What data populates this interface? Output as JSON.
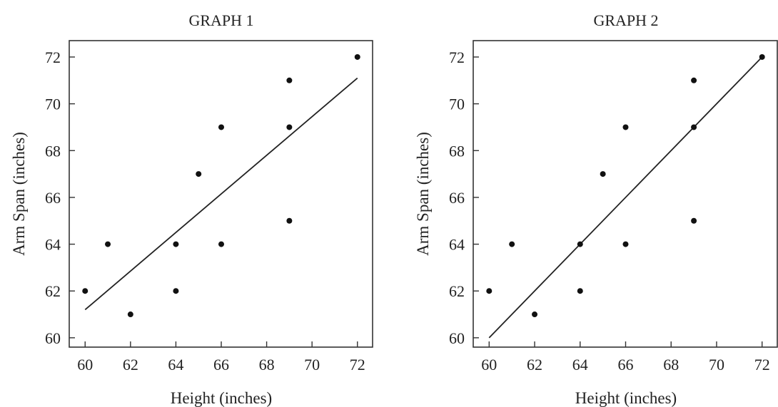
{
  "chart_data": [
    {
      "type": "scatter",
      "title": "GRAPH 1",
      "xlabel": "Height (inches)",
      "ylabel": "Arm Span (inches)",
      "xlim": [
        59.3,
        72.7
      ],
      "ylim": [
        59.6,
        72.7
      ],
      "xticks": [
        60,
        62,
        64,
        66,
        68,
        70,
        72
      ],
      "yticks": [
        60,
        62,
        64,
        66,
        68,
        70,
        72
      ],
      "grid": false,
      "points": [
        {
          "x": 60,
          "y": 62
        },
        {
          "x": 61,
          "y": 64
        },
        {
          "x": 62,
          "y": 61
        },
        {
          "x": 64,
          "y": 64
        },
        {
          "x": 64,
          "y": 62
        },
        {
          "x": 65,
          "y": 67
        },
        {
          "x": 66,
          "y": 69
        },
        {
          "x": 66,
          "y": 64
        },
        {
          "x": 69,
          "y": 71
        },
        {
          "x": 69,
          "y": 69
        },
        {
          "x": 69,
          "y": 65
        },
        {
          "x": 72,
          "y": 72
        }
      ],
      "line": {
        "x": [
          60,
          72
        ],
        "y": [
          61.2,
          71.1
        ]
      }
    },
    {
      "type": "scatter",
      "title": "GRAPH 2",
      "xlabel": "Height (inches)",
      "ylabel": "Arm Span (inches)",
      "xlim": [
        59.3,
        72.7
      ],
      "ylim": [
        59.6,
        72.7
      ],
      "xticks": [
        60,
        62,
        64,
        66,
        68,
        70,
        72
      ],
      "yticks": [
        60,
        62,
        64,
        66,
        68,
        70,
        72
      ],
      "grid": false,
      "points": [
        {
          "x": 60,
          "y": 62
        },
        {
          "x": 61,
          "y": 64
        },
        {
          "x": 62,
          "y": 61
        },
        {
          "x": 64,
          "y": 64
        },
        {
          "x": 64,
          "y": 62
        },
        {
          "x": 65,
          "y": 67
        },
        {
          "x": 66,
          "y": 69
        },
        {
          "x": 66,
          "y": 64
        },
        {
          "x": 69,
          "y": 71
        },
        {
          "x": 69,
          "y": 69
        },
        {
          "x": 69,
          "y": 65
        },
        {
          "x": 72,
          "y": 72
        }
      ],
      "line": {
        "x": [
          60,
          72
        ],
        "y": [
          60,
          72
        ]
      }
    }
  ]
}
